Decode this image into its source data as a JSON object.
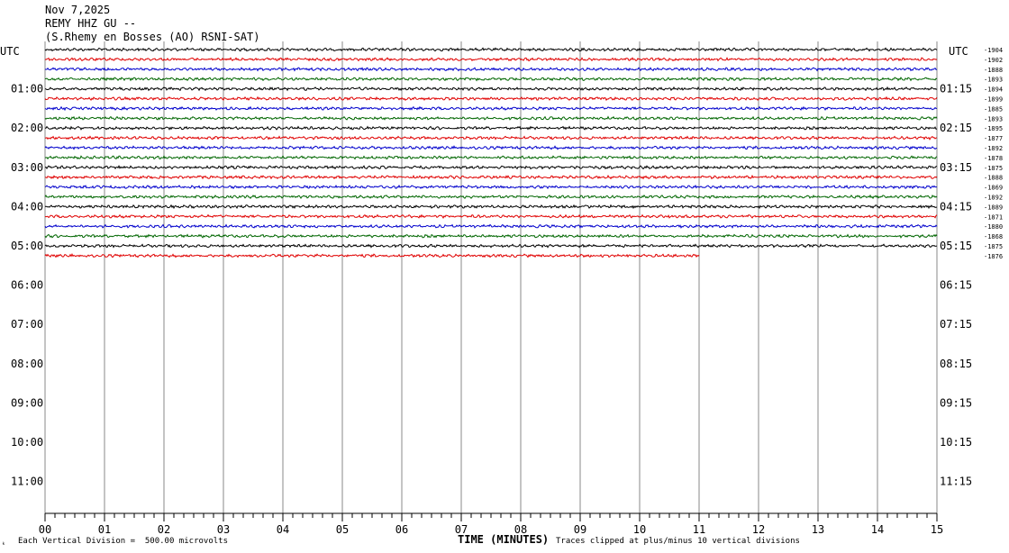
{
  "header": {
    "date": "Nov 7,2025",
    "station": "REMY HHZ GU --",
    "location": "(S.Rhemy en Bosses (AO) RSNI-SAT)"
  },
  "axis": {
    "left_title": "UTC",
    "right_title": "UTC",
    "xlabel": "TIME (MINUTES)",
    "scale_note": "Each Vertical Division =  500.00 microvolts",
    "clip_note": "Traces clipped at plus/minus 10 vertical divisions",
    "corner_mark": "ₖ"
  },
  "chart_data": {
    "type": "line",
    "title": "REMY HHZ GU --",
    "xlabel": "TIME (MINUTES)",
    "xlim": [
      0,
      15
    ],
    "x_ticks": [
      "00",
      "01",
      "02",
      "03",
      "04",
      "05",
      "06",
      "07",
      "08",
      "09",
      "10",
      "11",
      "12",
      "13",
      "14",
      "15"
    ],
    "left_hour_labels": [
      "01:00",
      "02:00",
      "03:00",
      "04:00",
      "05:00",
      "06:00",
      "07:00",
      "08:00",
      "09:00",
      "10:00",
      "11:00"
    ],
    "right_hour_labels": [
      "01:15",
      "02:15",
      "03:15",
      "04:15",
      "05:15",
      "06:15",
      "07:15",
      "08:15",
      "09:15",
      "10:15",
      "11:15"
    ],
    "line_colors": [
      "#000000",
      "#e00000",
      "#0000cc",
      "#006600"
    ],
    "traces": [
      {
        "offset": "-1904",
        "color": "#000000",
        "end_minute": 15
      },
      {
        "offset": "-1902",
        "color": "#e00000",
        "end_minute": 15
      },
      {
        "offset": "-1888",
        "color": "#0000cc",
        "end_minute": 15
      },
      {
        "offset": "-1893",
        "color": "#006600",
        "end_minute": 15
      },
      {
        "offset": "-1894",
        "color": "#000000",
        "end_minute": 15
      },
      {
        "offset": "-1899",
        "color": "#e00000",
        "end_minute": 15
      },
      {
        "offset": "-1885",
        "color": "#0000cc",
        "end_minute": 15
      },
      {
        "offset": "-1893",
        "color": "#006600",
        "end_minute": 15
      },
      {
        "offset": "-1895",
        "color": "#000000",
        "end_minute": 15
      },
      {
        "offset": "-1877",
        "color": "#e00000",
        "end_minute": 15
      },
      {
        "offset": "-1892",
        "color": "#0000cc",
        "end_minute": 15
      },
      {
        "offset": "-1878",
        "color": "#006600",
        "end_minute": 15
      },
      {
        "offset": "-1875",
        "color": "#000000",
        "end_minute": 15
      },
      {
        "offset": "-1888",
        "color": "#e00000",
        "end_minute": 15
      },
      {
        "offset": "-1869",
        "color": "#0000cc",
        "end_minute": 15
      },
      {
        "offset": "-1892",
        "color": "#006600",
        "end_minute": 15
      },
      {
        "offset": "-1889",
        "color": "#000000",
        "end_minute": 15
      },
      {
        "offset": "-1871",
        "color": "#e00000",
        "end_minute": 15
      },
      {
        "offset": "-1880",
        "color": "#0000cc",
        "end_minute": 15
      },
      {
        "offset": "-1868",
        "color": "#006600",
        "end_minute": 15
      },
      {
        "offset": "-1875",
        "color": "#000000",
        "end_minute": 15
      },
      {
        "offset": "-1876",
        "color": "#e00000",
        "end_minute": 11
      }
    ]
  }
}
